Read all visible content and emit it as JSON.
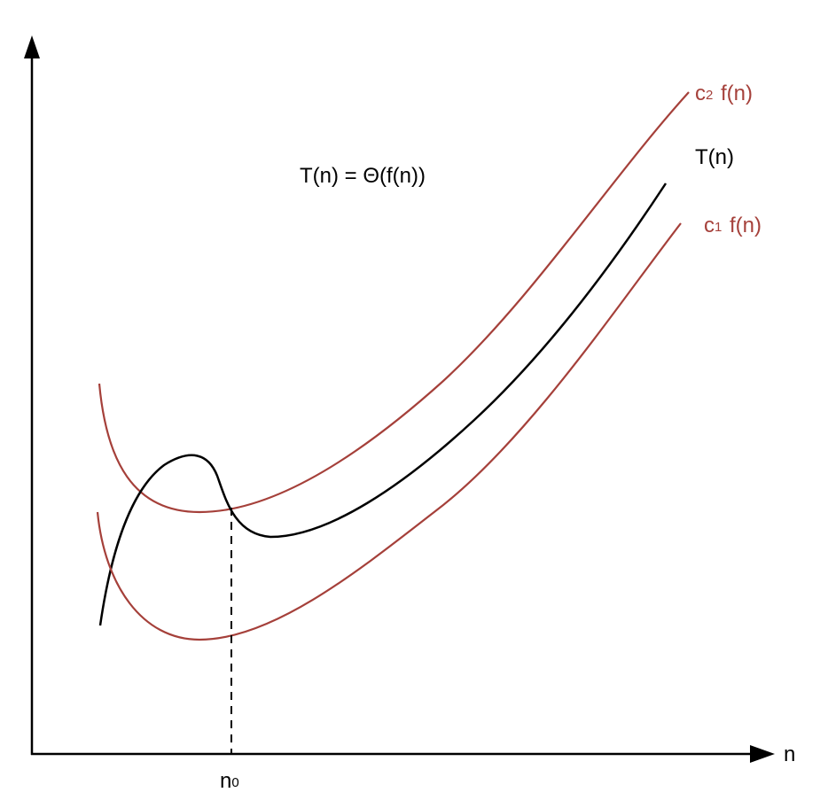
{
  "diagram": {
    "formula": "T(n) = Θ(f(n))",
    "x_axis_label": "n",
    "threshold_label": {
      "base": "n",
      "sub": "0"
    },
    "curves": {
      "upper": {
        "coef_base": "c",
        "coef_sub": "2",
        "func": "f(n)"
      },
      "tn": {
        "label": "T(n)"
      },
      "lower": {
        "coef_base": "c",
        "coef_sub": "1",
        "func": "f(n)"
      }
    },
    "colors": {
      "bound_curves": "#a5403a",
      "tn_curve": "#000000",
      "axes": "#000000"
    }
  }
}
